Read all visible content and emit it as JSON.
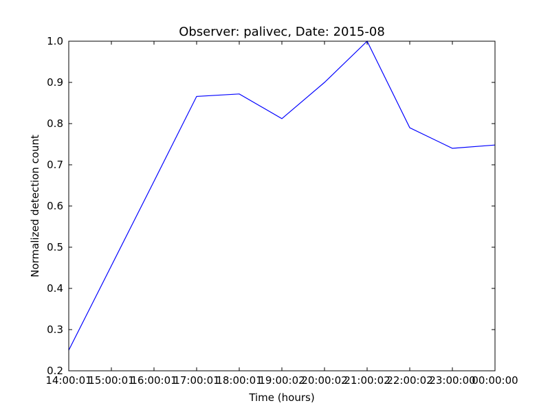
{
  "chart_data": {
    "type": "line",
    "title": "Observer: palivec, Date: 2015-08",
    "xlabel": "Time (hours)",
    "ylabel": "Normalized detection count",
    "categories": [
      "14:00:01",
      "15:00:01",
      "16:00:01",
      "17:00:01",
      "18:00:01",
      "19:00:02",
      "20:00:02",
      "21:00:02",
      "22:00:02",
      "23:00:00",
      "00:00:00"
    ],
    "series": [
      {
        "values": [
          0.25,
          0.455,
          0.66,
          0.866,
          0.872,
          0.812,
          0.9,
          1.0,
          0.79,
          0.74,
          0.748
        ]
      }
    ],
    "ylim": [
      0.2,
      1.0
    ],
    "yticks": [
      "0.2",
      "0.3",
      "0.4",
      "0.5",
      "0.6",
      "0.7",
      "0.8",
      "0.9",
      "1.0"
    ],
    "grid": false,
    "line_color": "#0000ff"
  }
}
